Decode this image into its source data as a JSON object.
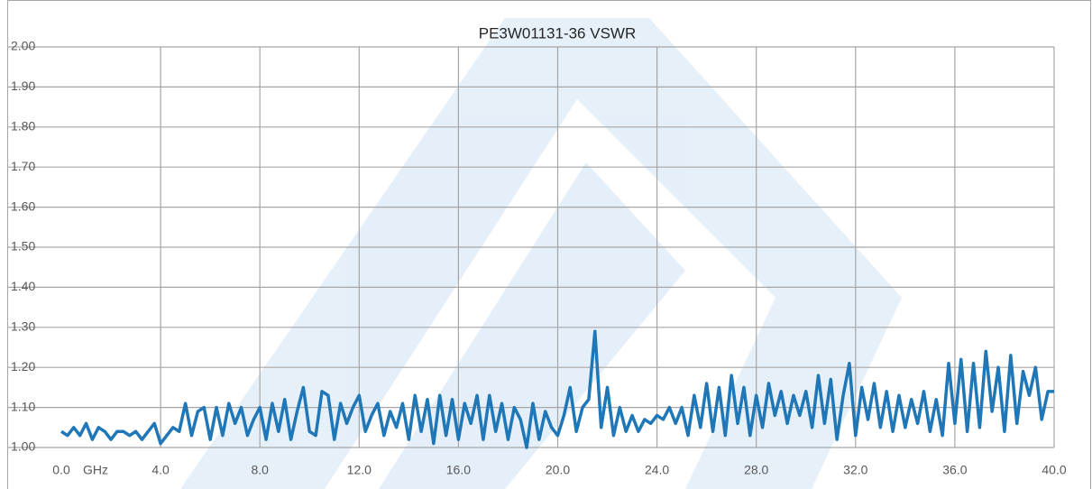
{
  "chart_data": {
    "type": "line",
    "title": "PE3W01131-36 VSWR",
    "x_label": "GHz",
    "x": [
      0,
      0.25,
      0.5,
      0.75,
      1,
      1.25,
      1.5,
      1.75,
      2,
      2.25,
      2.5,
      2.75,
      3,
      3.25,
      3.5,
      3.75,
      4,
      4.25,
      4.5,
      4.75,
      5,
      5.25,
      5.5,
      5.75,
      6,
      6.25,
      6.5,
      6.75,
      7,
      7.25,
      7.5,
      7.75,
      8,
      8.25,
      8.5,
      8.75,
      9,
      9.25,
      9.5,
      9.75,
      10,
      10.25,
      10.5,
      10.75,
      11,
      11.25,
      11.5,
      11.75,
      12,
      12.25,
      12.5,
      12.75,
      13,
      13.25,
      13.5,
      13.75,
      14,
      14.25,
      14.5,
      14.75,
      15,
      15.25,
      15.5,
      15.75,
      16,
      16.25,
      16.5,
      16.75,
      17,
      17.25,
      17.5,
      17.75,
      18,
      18.25,
      18.5,
      18.75,
      19,
      19.25,
      19.5,
      19.75,
      20,
      20.25,
      20.5,
      20.75,
      21,
      21.25,
      21.5,
      21.75,
      22,
      22.25,
      22.5,
      22.75,
      23,
      23.25,
      23.5,
      23.75,
      24,
      24.25,
      24.5,
      24.75,
      25,
      25.25,
      25.5,
      25.75,
      26,
      26.25,
      26.5,
      26.75,
      27,
      27.25,
      27.5,
      27.75,
      28,
      28.25,
      28.5,
      28.75,
      29,
      29.25,
      29.5,
      29.75,
      30,
      30.25,
      30.5,
      30.75,
      31,
      31.25,
      31.5,
      31.75,
      32,
      32.25,
      32.5,
      32.75,
      33,
      33.25,
      33.5,
      33.75,
      34,
      34.25,
      34.5,
      34.75,
      35,
      35.25,
      35.5,
      35.75,
      36,
      36.25,
      36.5,
      36.75,
      37,
      37.25,
      37.5,
      37.75,
      38,
      38.25,
      38.5,
      38.75,
      39,
      39.25,
      39.5,
      39.75,
      40
    ],
    "series": [
      {
        "name": "VSWR",
        "color": "#1f77b8",
        "values": [
          1.04,
          1.03,
          1.05,
          1.03,
          1.06,
          1.02,
          1.05,
          1.04,
          1.02,
          1.04,
          1.04,
          1.03,
          1.04,
          1.02,
          1.04,
          1.06,
          1.01,
          1.03,
          1.05,
          1.04,
          1.11,
          1.03,
          1.09,
          1.1,
          1.02,
          1.1,
          1.03,
          1.11,
          1.06,
          1.1,
          1.03,
          1.07,
          1.1,
          1.02,
          1.11,
          1.04,
          1.12,
          1.02,
          1.09,
          1.15,
          1.04,
          1.03,
          1.14,
          1.13,
          1.02,
          1.11,
          1.06,
          1.1,
          1.13,
          1.04,
          1.08,
          1.11,
          1.03,
          1.09,
          1.05,
          1.11,
          1.02,
          1.13,
          1.04,
          1.12,
          1.01,
          1.13,
          1.03,
          1.12,
          1.02,
          1.11,
          1.06,
          1.13,
          1.02,
          1.13,
          1.04,
          1.11,
          1.02,
          1.1,
          1.07,
          1.0,
          1.11,
          1.02,
          1.09,
          1.05,
          1.03,
          1.08,
          1.15,
          1.04,
          1.1,
          1.12,
          1.29,
          1.05,
          1.15,
          1.03,
          1.1,
          1.04,
          1.08,
          1.04,
          1.07,
          1.06,
          1.08,
          1.07,
          1.1,
          1.06,
          1.1,
          1.03,
          1.13,
          1.05,
          1.16,
          1.04,
          1.15,
          1.03,
          1.18,
          1.06,
          1.15,
          1.03,
          1.13,
          1.05,
          1.16,
          1.08,
          1.14,
          1.06,
          1.13,
          1.08,
          1.14,
          1.05,
          1.18,
          1.06,
          1.17,
          1.02,
          1.13,
          1.21,
          1.03,
          1.15,
          1.07,
          1.16,
          1.05,
          1.14,
          1.04,
          1.13,
          1.05,
          1.12,
          1.06,
          1.14,
          1.04,
          1.12,
          1.03,
          1.21,
          1.06,
          1.22,
          1.04,
          1.21,
          1.05,
          1.24,
          1.09,
          1.2,
          1.04,
          1.23,
          1.06,
          1.19,
          1.13,
          1.2,
          1.07,
          1.14,
          1.14
        ]
      }
    ],
    "xlim": [
      0,
      40
    ],
    "xticks": [
      {
        "value": 0,
        "label": "0.0"
      },
      {
        "value": 4,
        "label": "4.0"
      },
      {
        "value": 8,
        "label": "8.0"
      },
      {
        "value": 12,
        "label": "12.0"
      },
      {
        "value": 16,
        "label": "16.0"
      },
      {
        "value": 20,
        "label": "20.0"
      },
      {
        "value": 24,
        "label": "24.0"
      },
      {
        "value": 28,
        "label": "28.0"
      },
      {
        "value": 32,
        "label": "32.0"
      },
      {
        "value": 36,
        "label": "36.0"
      },
      {
        "value": 40,
        "label": "40.0"
      }
    ],
    "ylim": [
      1,
      2
    ],
    "yticks": [
      {
        "value": 1,
        "label": "1.00"
      },
      {
        "value": 1.1,
        "label": "1.10"
      },
      {
        "value": 1.2,
        "label": "1.20"
      },
      {
        "value": 1.3,
        "label": "1.30"
      },
      {
        "value": 1.4,
        "label": "1.40"
      },
      {
        "value": 1.5,
        "label": "1.50"
      },
      {
        "value": 1.6,
        "label": "1.60"
      },
      {
        "value": 1.7,
        "label": "1.70"
      },
      {
        "value": 1.8,
        "label": "1.80"
      },
      {
        "value": 1.9,
        "label": "1.90"
      },
      {
        "value": 2,
        "label": "2.00"
      }
    ],
    "grid": true
  }
}
